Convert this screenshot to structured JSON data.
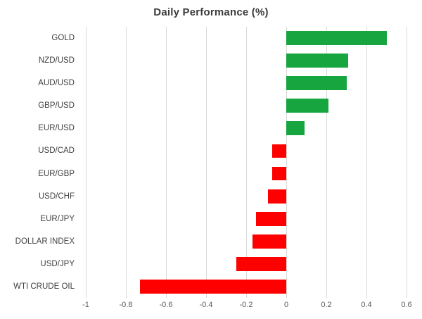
{
  "chart_data": {
    "type": "bar",
    "orientation": "horizontal",
    "title": "Daily Performance (%)",
    "categories": [
      "GOLD",
      "NZD/USD",
      "AUD/USD",
      "GBP/USD",
      "EUR/USD",
      "USD/CAD",
      "EUR/GBP",
      "USD/CHF",
      "EUR/JPY",
      "DOLLAR INDEX",
      "USD/JPY",
      "WTI CRUDE OIL"
    ],
    "values": [
      0.5,
      0.31,
      0.3,
      0.21,
      0.09,
      -0.07,
      -0.07,
      -0.09,
      -0.15,
      -0.17,
      -0.25,
      -0.73
    ],
    "xlim": [
      -1,
      0.6
    ],
    "xticks": [
      {
        "value": -1,
        "label": "-1"
      },
      {
        "value": -0.8,
        "label": "-0.8"
      },
      {
        "value": -0.6,
        "label": "-0.6"
      },
      {
        "value": -0.4,
        "label": "-0.4"
      },
      {
        "value": -0.2,
        "label": "-0.2"
      },
      {
        "value": 0,
        "label": "0"
      },
      {
        "value": 0.2,
        "label": "0.2"
      },
      {
        "value": 0.4,
        "label": "0.4"
      },
      {
        "value": 0.6,
        "label": "0.6"
      }
    ],
    "grid": true,
    "legend": "none",
    "colors": {
      "positive": "#16a53f",
      "negative": "#fe0000",
      "gridline": "#d9d9d9"
    }
  }
}
